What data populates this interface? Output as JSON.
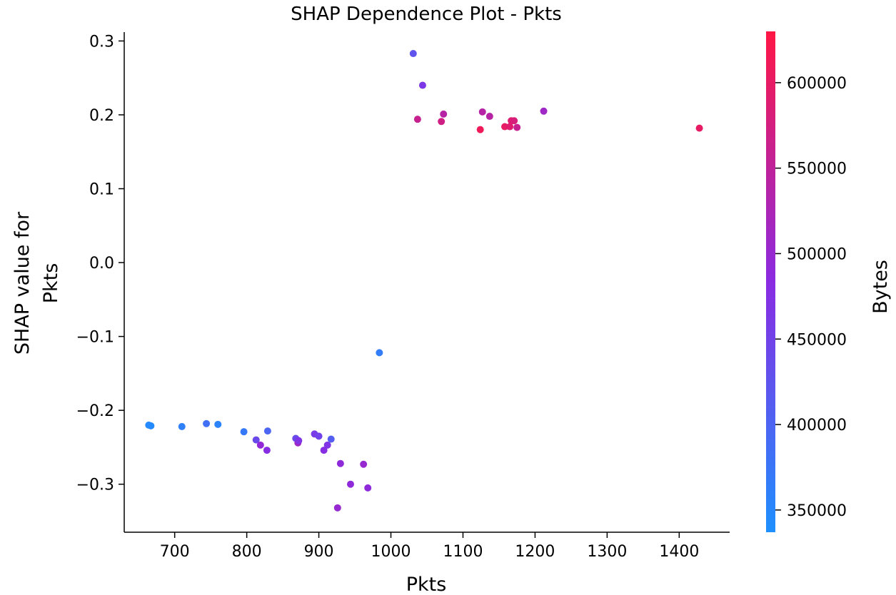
{
  "chart_data": {
    "type": "scatter",
    "title": "SHAP Dependence Plot - Pkts",
    "xlabel": "Pkts",
    "ylabel_lines": [
      "SHAP value for",
      "Pkts"
    ],
    "xlim": [
      630,
      1470
    ],
    "ylim": [
      -0.365,
      0.312
    ],
    "xticks": [
      700,
      800,
      900,
      1000,
      1100,
      1200,
      1300,
      1400
    ],
    "yticks": [
      0.3,
      0.2,
      0.1,
      0.0,
      -0.1,
      -0.2,
      -0.3
    ],
    "ytick_labels": [
      "0.3",
      "0.2",
      "0.1",
      "0.0",
      "−0.1",
      "−0.2",
      "−0.3"
    ],
    "colorbar": {
      "label": "Bytes",
      "min": 337000,
      "max": 630000,
      "ticks": [
        350000,
        400000,
        450000,
        500000,
        550000,
        600000
      ],
      "color_low": "#1e90ff",
      "color_mid": "#8a2be2",
      "color_high": "#ff1744"
    },
    "points": [
      {
        "x": 664,
        "y": -0.22,
        "bytes": 345000
      },
      {
        "x": 667,
        "y": -0.221,
        "bytes": 345000
      },
      {
        "x": 710,
        "y": -0.222,
        "bytes": 360000
      },
      {
        "x": 744,
        "y": -0.218,
        "bytes": 385000
      },
      {
        "x": 760,
        "y": -0.219,
        "bytes": 355000
      },
      {
        "x": 796,
        "y": -0.229,
        "bytes": 370000
      },
      {
        "x": 813,
        "y": -0.24,
        "bytes": 440000
      },
      {
        "x": 819,
        "y": -0.247,
        "bytes": 495000
      },
      {
        "x": 828,
        "y": -0.254,
        "bytes": 480000
      },
      {
        "x": 829,
        "y": -0.228,
        "bytes": 400000
      },
      {
        "x": 868,
        "y": -0.238,
        "bytes": 440000
      },
      {
        "x": 871,
        "y": -0.244,
        "bytes": 510000
      },
      {
        "x": 872,
        "y": -0.241,
        "bytes": 470000
      },
      {
        "x": 894,
        "y": -0.232,
        "bytes": 460000
      },
      {
        "x": 900,
        "y": -0.235,
        "bytes": 450000
      },
      {
        "x": 907,
        "y": -0.254,
        "bytes": 480000
      },
      {
        "x": 912,
        "y": -0.247,
        "bytes": 470000
      },
      {
        "x": 917,
        "y": -0.239,
        "bytes": 410000
      },
      {
        "x": 926,
        "y": -0.332,
        "bytes": 500000
      },
      {
        "x": 930,
        "y": -0.272,
        "bytes": 490000
      },
      {
        "x": 944,
        "y": -0.3,
        "bytes": 490000
      },
      {
        "x": 962,
        "y": -0.273,
        "bytes": 500000
      },
      {
        "x": 968,
        "y": -0.305,
        "bytes": 490000
      },
      {
        "x": 984,
        "y": -0.122,
        "bytes": 365000
      },
      {
        "x": 1031,
        "y": 0.283,
        "bytes": 425000
      },
      {
        "x": 1037,
        "y": 0.194,
        "bytes": 560000
      },
      {
        "x": 1044,
        "y": 0.24,
        "bytes": 465000
      },
      {
        "x": 1070,
        "y": 0.191,
        "bytes": 570000
      },
      {
        "x": 1073,
        "y": 0.201,
        "bytes": 540000
      },
      {
        "x": 1124,
        "y": 0.18,
        "bytes": 610000
      },
      {
        "x": 1127,
        "y": 0.204,
        "bytes": 540000
      },
      {
        "x": 1137,
        "y": 0.198,
        "bytes": 540000
      },
      {
        "x": 1158,
        "y": 0.184,
        "bytes": 600000
      },
      {
        "x": 1165,
        "y": 0.184,
        "bytes": 590000
      },
      {
        "x": 1167,
        "y": 0.192,
        "bytes": 590000
      },
      {
        "x": 1171,
        "y": 0.192,
        "bytes": 580000
      },
      {
        "x": 1175,
        "y": 0.183,
        "bytes": 560000
      },
      {
        "x": 1212,
        "y": 0.205,
        "bytes": 510000
      },
      {
        "x": 1428,
        "y": 0.182,
        "bytes": 600000
      }
    ]
  }
}
